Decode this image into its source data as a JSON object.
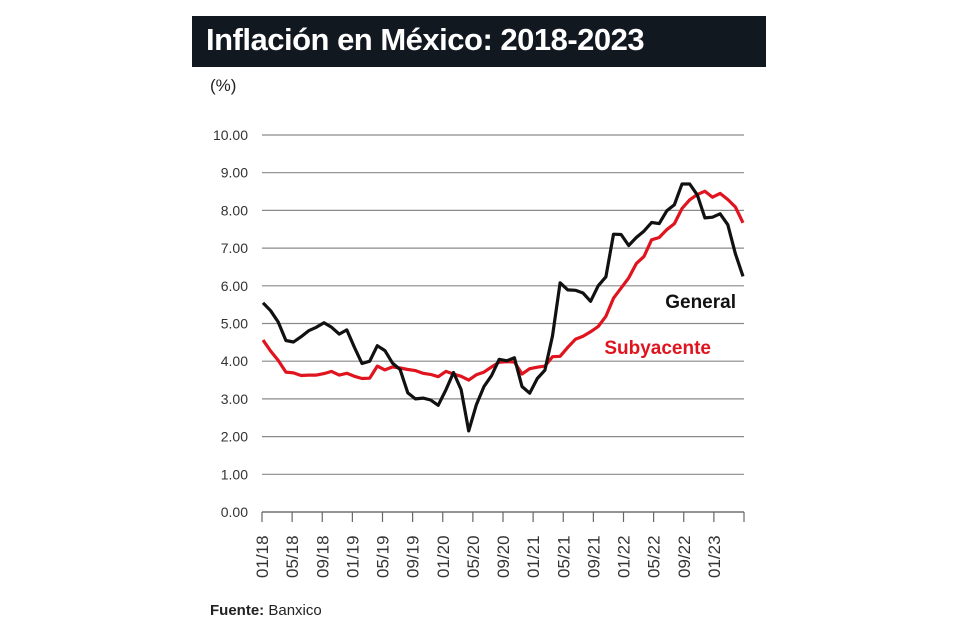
{
  "title": "Inflación en México: 2018-2023",
  "unit_label": "(%)",
  "source": {
    "label": "Fuente:",
    "value": "Banxico"
  },
  "chart_data": {
    "type": "line",
    "title": "Inflación en México: 2018-2023",
    "ylabel": "(%)",
    "ylim": [
      0,
      10
    ],
    "yticks": [
      "0.00",
      "1.00",
      "2.00",
      "3.00",
      "4.00",
      "5.00",
      "6.00",
      "7.00",
      "8.00",
      "9.00",
      "10.00"
    ],
    "xticks": [
      "01/18",
      "05/18",
      "09/18",
      "01/19",
      "05/19",
      "09/19",
      "01/20",
      "05/20",
      "09/20",
      "01/21",
      "05/21",
      "09/21",
      "01/22",
      "05/22",
      "09/22",
      "01/23"
    ],
    "x_start": "01/18",
    "x_end": "04/23",
    "grid": true,
    "series": [
      {
        "name": "General",
        "color": "#111111",
        "values": [
          5.55,
          5.34,
          5.04,
          4.55,
          4.51,
          4.65,
          4.81,
          4.9,
          5.02,
          4.9,
          4.72,
          4.83,
          4.37,
          3.94,
          4.0,
          4.41,
          4.28,
          3.95,
          3.78,
          3.16,
          3.0,
          3.02,
          2.97,
          2.83,
          3.24,
          3.7,
          3.25,
          2.15,
          2.84,
          3.33,
          3.62,
          4.05,
          4.01,
          4.09,
          3.33,
          3.15,
          3.54,
          3.76,
          4.67,
          6.08,
          5.89,
          5.88,
          5.81,
          5.59,
          6.0,
          6.24,
          7.37,
          7.36,
          7.07,
          7.28,
          7.45,
          7.68,
          7.65,
          7.99,
          8.15,
          8.7,
          8.7,
          8.41,
          7.8,
          7.82,
          7.91,
          7.62,
          6.85,
          6.25
        ]
      },
      {
        "name": "Subyacente",
        "color": "#e0141e",
        "values": [
          4.56,
          4.27,
          4.02,
          3.71,
          3.69,
          3.62,
          3.63,
          3.63,
          3.67,
          3.73,
          3.63,
          3.68,
          3.6,
          3.54,
          3.55,
          3.87,
          3.77,
          3.85,
          3.82,
          3.78,
          3.75,
          3.68,
          3.65,
          3.59,
          3.73,
          3.66,
          3.6,
          3.5,
          3.64,
          3.71,
          3.85,
          3.97,
          3.99,
          3.98,
          3.66,
          3.8,
          3.84,
          3.87,
          4.12,
          4.13,
          4.37,
          4.58,
          4.66,
          4.78,
          4.92,
          5.19,
          5.67,
          5.94,
          6.21,
          6.59,
          6.78,
          7.22,
          7.28,
          7.49,
          7.65,
          8.05,
          8.28,
          8.42,
          8.51,
          8.35,
          8.45,
          8.29,
          8.09,
          7.67
        ]
      }
    ]
  }
}
